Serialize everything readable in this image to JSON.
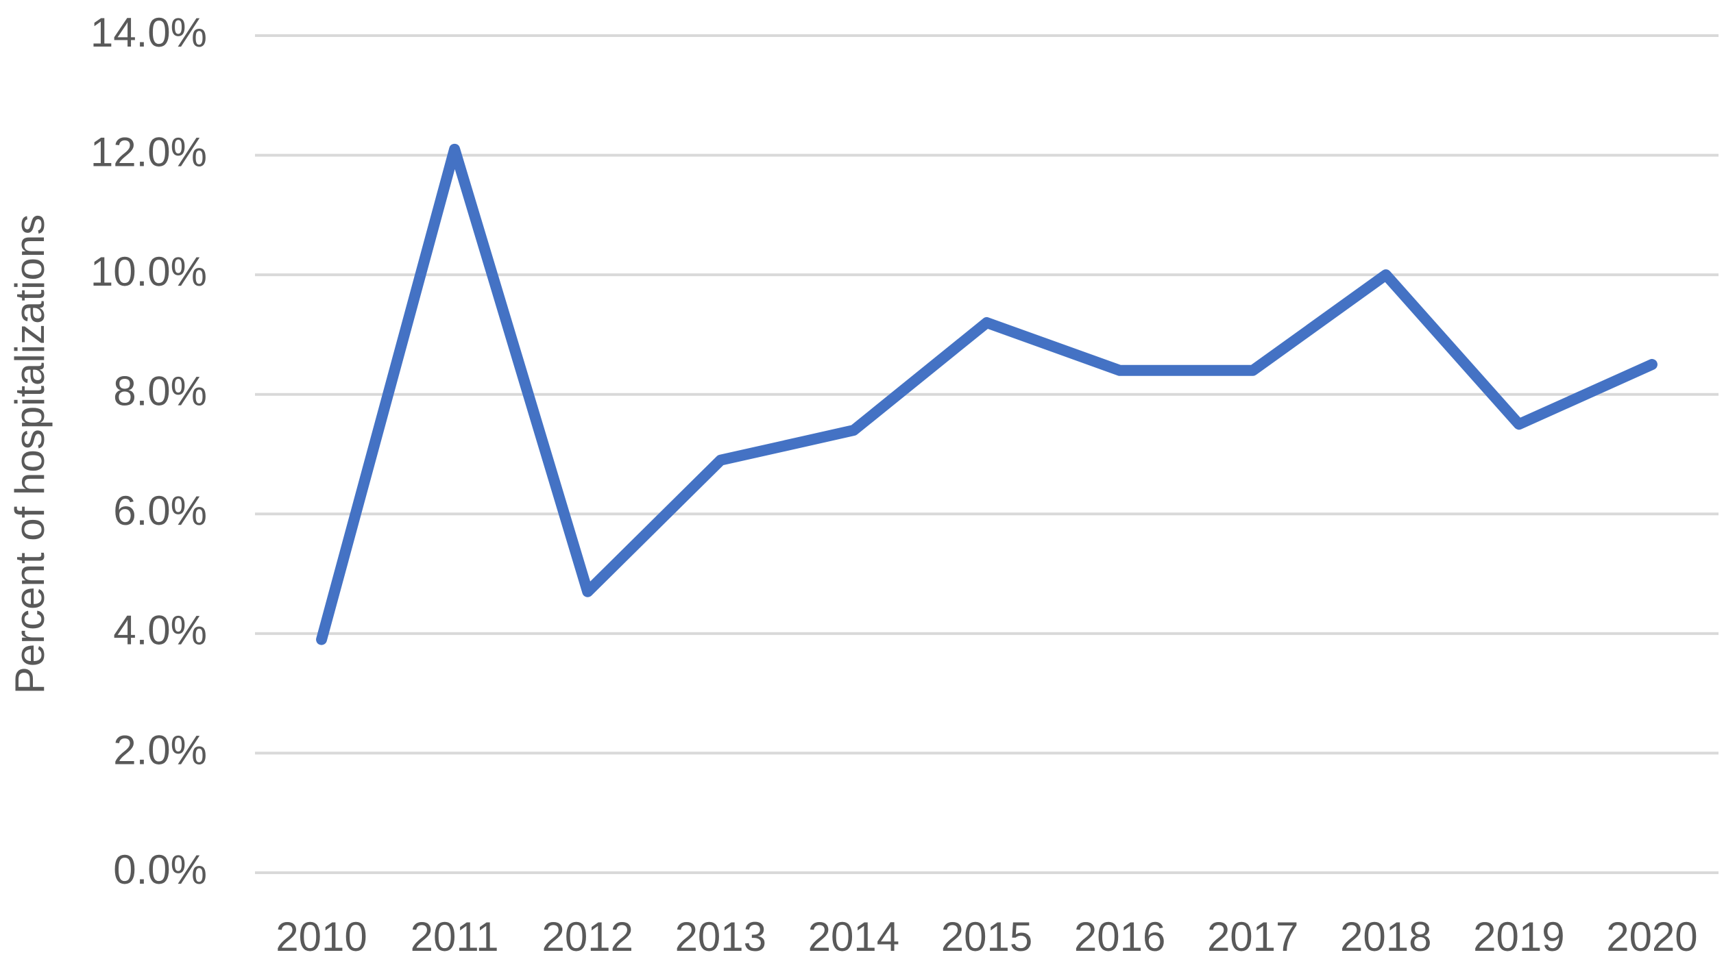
{
  "chart_data": {
    "type": "line",
    "y_label": "Percent of hospitalizations",
    "categories": [
      "2010",
      "2011",
      "2012",
      "2013",
      "2014",
      "2015",
      "2016",
      "2017",
      "2018",
      "2019",
      "2020"
    ],
    "values": [
      3.9,
      12.1,
      4.7,
      6.9,
      7.4,
      9.2,
      8.4,
      8.4,
      10.0,
      7.5,
      8.5
    ],
    "color": "#4472c4",
    "ylim": [
      0,
      14
    ],
    "yticks": [
      {
        "value": 0,
        "label": "0.0%"
      },
      {
        "value": 2,
        "label": "2.0%"
      },
      {
        "value": 4,
        "label": "4.0%"
      },
      {
        "value": 6,
        "label": "6.0%"
      },
      {
        "value": 8,
        "label": "8.0%"
      },
      {
        "value": 10,
        "label": "10.0%"
      },
      {
        "value": 12,
        "label": "12.0%"
      },
      {
        "value": 14,
        "label": "14.0%"
      }
    ],
    "grid": true
  }
}
